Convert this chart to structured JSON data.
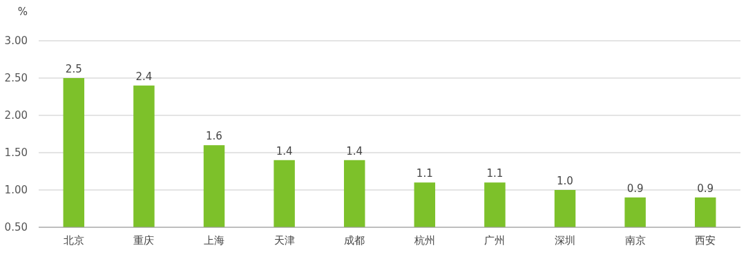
{
  "chart_data": {
    "type": "bar",
    "ylabel": "%",
    "categories": [
      "北京",
      "重庆",
      "上海",
      "天津",
      "成都",
      "杭州",
      "广州",
      "深圳",
      "南京",
      "西安"
    ],
    "values": [
      2.5,
      2.4,
      1.6,
      1.4,
      1.4,
      1.1,
      1.1,
      1.0,
      0.9,
      0.9
    ],
    "color": "#7dc12a",
    "ylim": [
      0.5,
      3.0
    ],
    "yticks": [
      {
        "value": 0.5,
        "label": "0.50"
      },
      {
        "value": 1.0,
        "label": "1.00"
      },
      {
        "value": 1.5,
        "label": "1.50"
      },
      {
        "value": 2.0,
        "label": "2.00"
      },
      {
        "value": 2.5,
        "label": "2.50"
      },
      {
        "value": 3.0,
        "label": "3.00"
      }
    ],
    "value_labels": [
      "2.5",
      "2.4",
      "1.6",
      "1.4",
      "1.4",
      "1.1",
      "1.1",
      "1.0",
      "0.9",
      "0.9"
    ],
    "grid": "y"
  }
}
